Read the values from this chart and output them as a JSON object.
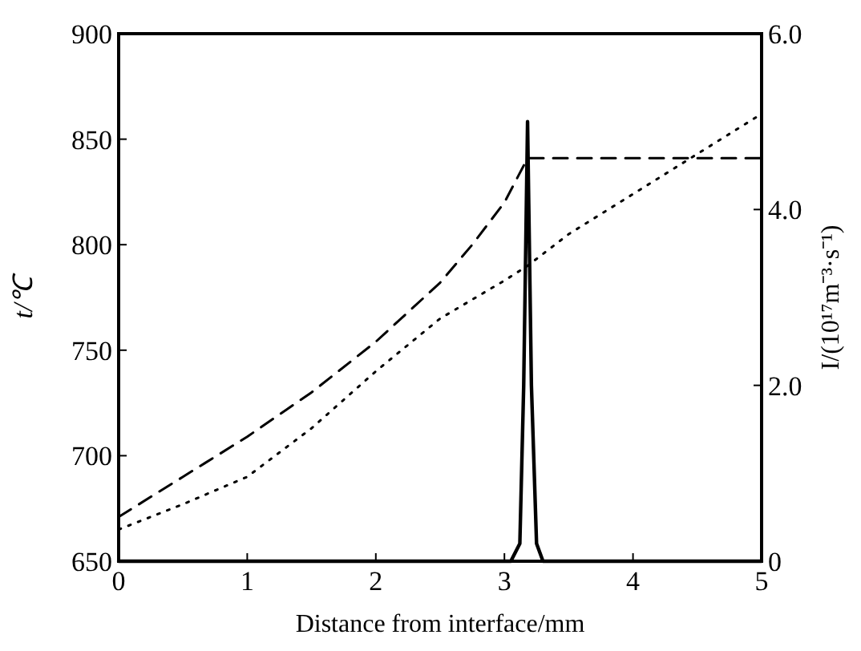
{
  "chart_data": {
    "type": "line",
    "xlabel": "Distance from interface/mm",
    "ylabel": "t/℃",
    "y2label": "I/(10¹⁷m⁻³·s⁻¹)",
    "xlim": [
      0,
      5
    ],
    "xticks": [
      0,
      1,
      2,
      3,
      4,
      5
    ],
    "ylim": [
      650,
      900
    ],
    "yticks": [
      650,
      700,
      750,
      800,
      850,
      900
    ],
    "y2lim": [
      0,
      6
    ],
    "y2ticks": [
      0,
      {
        "value": 2,
        "label": "2.0"
      },
      {
        "value": 4,
        "label": "4.0"
      },
      {
        "value": 6,
        "label": "6.0"
      }
    ],
    "grid": false,
    "series": [
      {
        "color": "#000000",
        "line_style": "dashed",
        "x": [
          0,
          0.5,
          1,
          1.5,
          2,
          2.5,
          2.75,
          3,
          3.18,
          3.5,
          4,
          4.5,
          5
        ],
        "values": [
          671,
          690,
          709,
          730,
          754,
          782,
          800,
          820,
          841,
          841,
          841,
          841,
          841
        ]
      },
      {
        "color": "#000000",
        "line_style": "dotted",
        "x": [
          0,
          0.5,
          1,
          1.5,
          2,
          2.5,
          3,
          3.18,
          3.5,
          4,
          4.5,
          5
        ],
        "values": [
          665,
          677,
          690,
          713,
          740,
          765,
          783,
          790,
          805,
          824,
          843,
          862
        ]
      },
      {
        "color": "#000000",
        "line_style": "solid",
        "axis": "y2",
        "x": [
          0,
          3.05,
          3.12,
          3.15,
          3.18,
          3.21,
          3.25,
          3.3,
          5
        ],
        "values": [
          0,
          0,
          0.2,
          2.0,
          5.0,
          2.0,
          0.2,
          0,
          0
        ]
      }
    ]
  }
}
